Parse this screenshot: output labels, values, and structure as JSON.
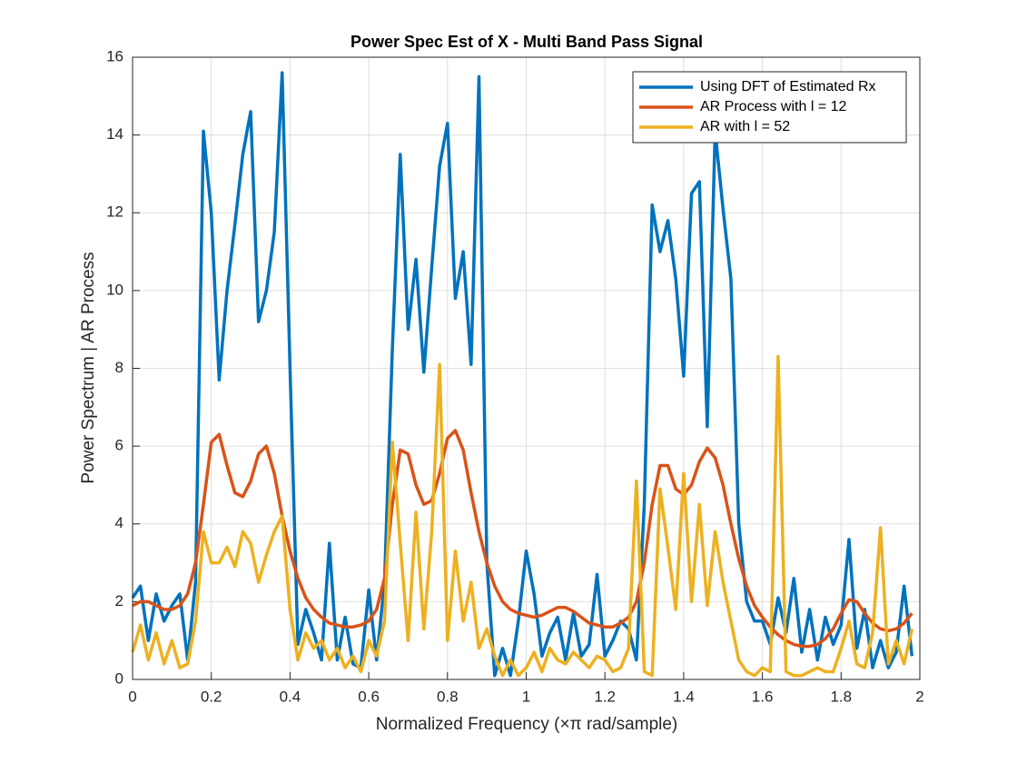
{
  "chart_data": {
    "type": "line",
    "title": "Power Spec Est of X - Multi Band Pass Signal",
    "xlabel": "Normalized Frequency (×π rad/sample)",
    "ylabel": "Power Spectrum | AR Process",
    "xlim": [
      0,
      2
    ],
    "ylim": [
      0,
      16
    ],
    "xticks": [
      0,
      0.2,
      0.4,
      0.6,
      0.8,
      1,
      1.2,
      1.4,
      1.6,
      1.8,
      2
    ],
    "yticks": [
      0,
      2,
      4,
      6,
      8,
      10,
      12,
      14,
      16
    ],
    "grid": true,
    "legend": "northeast",
    "x": [
      0,
      0.02,
      0.04,
      0.06,
      0.08,
      0.1,
      0.12,
      0.14,
      0.16,
      0.18,
      0.2,
      0.22,
      0.24,
      0.26,
      0.28,
      0.3,
      0.32,
      0.34,
      0.36,
      0.38,
      0.4,
      0.42,
      0.44,
      0.46,
      0.48,
      0.5,
      0.52,
      0.54,
      0.56,
      0.58,
      0.6,
      0.62,
      0.64,
      0.66,
      0.68,
      0.7,
      0.72,
      0.74,
      0.76,
      0.78,
      0.8,
      0.82,
      0.84,
      0.86,
      0.88,
      0.9,
      0.92,
      0.94,
      0.96,
      0.98,
      1,
      1.02,
      1.04,
      1.06,
      1.08,
      1.1,
      1.12,
      1.14,
      1.16,
      1.18,
      1.2,
      1.22,
      1.24,
      1.26,
      1.28,
      1.3,
      1.32,
      1.34,
      1.36,
      1.38,
      1.4,
      1.42,
      1.44,
      1.46,
      1.48,
      1.5,
      1.52,
      1.54,
      1.56,
      1.58,
      1.6,
      1.62,
      1.64,
      1.66,
      1.68,
      1.7,
      1.72,
      1.74,
      1.76,
      1.78,
      1.8,
      1.82,
      1.84,
      1.86,
      1.88,
      1.9,
      1.92,
      1.94,
      1.96,
      1.98
    ],
    "series": [
      {
        "name": "Using DFT of Estimated Rx",
        "color": "#0072BD",
        "values": [
          2.1,
          2.4,
          1.0,
          2.2,
          1.5,
          1.9,
          2.2,
          0.5,
          2.5,
          14.1,
          12,
          7.7,
          10.0,
          11.7,
          13.5,
          14.6,
          9.2,
          10.0,
          11.5,
          15.6,
          8,
          0.9,
          1.8,
          1.2,
          0.5,
          3.5,
          0.5,
          1.6,
          0.4,
          0.3,
          2.3,
          0.5,
          2.5,
          8.5,
          13.5,
          9.0,
          10.8,
          7.9,
          10.6,
          13.2,
          14.3,
          9.8,
          11.0,
          8.1,
          15.5,
          3,
          0.1,
          0.8,
          0.1,
          1.5,
          3.3,
          2.2,
          0.6,
          1.2,
          1.6,
          0.5,
          1.7,
          0.6,
          0.9,
          2.7,
          0.6,
          1.0,
          1.5,
          1.3,
          0.5,
          4.5,
          12.2,
          11,
          11.8,
          10.3,
          7.8,
          12.5,
          12.8,
          6.5,
          14.1,
          12.1,
          10.3,
          4,
          2,
          1.5,
          1.5,
          0.9,
          2.1,
          1.2,
          2.6,
          0.7,
          1.8,
          0.5,
          1.6,
          0.9,
          1.4,
          3.6,
          0.8,
          1.8,
          0.3,
          1.0,
          0.3,
          0.7,
          2.4,
          0.6
        ]
      },
      {
        "name": "AR Process with l = 12",
        "color": "#D95319",
        "values": [
          1.9,
          2.0,
          2.0,
          1.9,
          1.8,
          1.8,
          1.9,
          2.2,
          3.0,
          4.5,
          6.1,
          6.3,
          5.5,
          4.8,
          4.7,
          5.1,
          5.8,
          6.0,
          5.3,
          4.2,
          3.3,
          2.6,
          2.1,
          1.8,
          1.6,
          1.45,
          1.4,
          1.35,
          1.35,
          1.4,
          1.5,
          1.8,
          2.6,
          4.5,
          5.9,
          5.8,
          5.0,
          4.5,
          4.6,
          5.3,
          6.2,
          6.4,
          5.9,
          4.8,
          3.8,
          3.0,
          2.4,
          2.0,
          1.8,
          1.7,
          1.65,
          1.6,
          1.65,
          1.75,
          1.85,
          1.85,
          1.75,
          1.6,
          1.45,
          1.4,
          1.35,
          1.35,
          1.45,
          1.6,
          2.0,
          3.0,
          4.5,
          5.5,
          5.5,
          4.9,
          4.75,
          5.0,
          5.6,
          5.95,
          5.7,
          5.0,
          4.0,
          3.1,
          2.4,
          1.9,
          1.6,
          1.35,
          1.15,
          1.0,
          0.9,
          0.85,
          0.85,
          0.9,
          1.05,
          1.3,
          1.7,
          2.05,
          2.0,
          1.7,
          1.45,
          1.3,
          1.25,
          1.3,
          1.45,
          1.7
        ]
      },
      {
        "name": "AR with l = 52",
        "color": "#EDB120",
        "values": [
          0.7,
          1.4,
          0.5,
          1.2,
          0.4,
          1.0,
          0.3,
          0.4,
          1.5,
          3.8,
          3.0,
          3.0,
          3.4,
          2.9,
          3.8,
          3.5,
          2.5,
          3.2,
          3.8,
          4.2,
          1.8,
          0.5,
          1.2,
          0.8,
          1.0,
          0.5,
          0.8,
          0.3,
          0.6,
          0.2,
          1.0,
          0.6,
          1.5,
          6.1,
          3.5,
          1.0,
          4.3,
          1.3,
          3.8,
          8.1,
          1.0,
          3.3,
          1.5,
          2.5,
          0.8,
          1.3,
          0.6,
          0.1,
          0.5,
          0.1,
          0.3,
          0.7,
          0.2,
          0.8,
          0.5,
          0.4,
          0.7,
          0.5,
          0.3,
          0.6,
          0.5,
          0.2,
          0.3,
          0.8,
          5.1,
          0.2,
          0.1,
          4.9,
          3.4,
          1.8,
          5.3,
          2.0,
          4.5,
          1.9,
          3.8,
          2.5,
          1.5,
          0.5,
          0.2,
          0.1,
          0.3,
          0.2,
          8.3,
          0.2,
          0.1,
          0.1,
          0.2,
          0.3,
          0.2,
          0.2,
          0.8,
          1.5,
          0.4,
          0.3,
          1.2,
          3.9,
          0.4,
          1.0,
          0.4,
          1.3
        ]
      }
    ]
  }
}
